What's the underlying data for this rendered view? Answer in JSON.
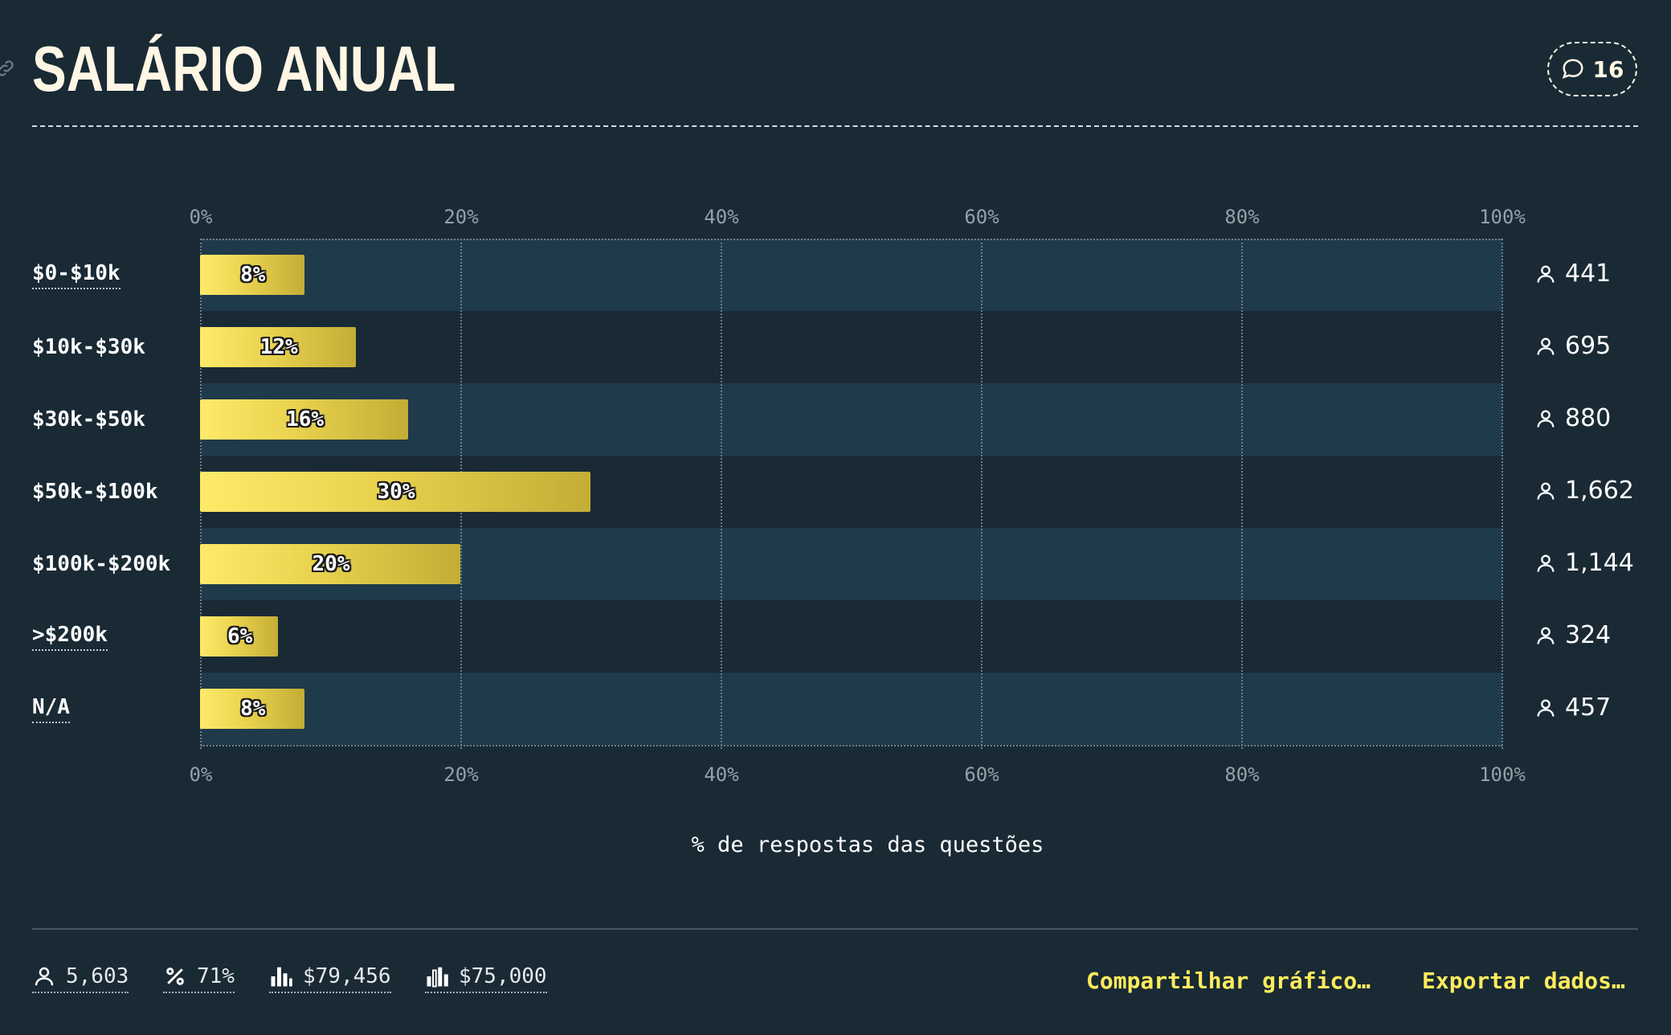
{
  "header": {
    "title": "SALÁRIO ANUAL",
    "comment_count": "16"
  },
  "colors": {
    "background": "#192a35",
    "band": "#1f3a4b",
    "bar_start": "#ffea6a",
    "bar_end": "#c4ad36",
    "accent": "#ffec5c"
  },
  "chart_data": {
    "type": "bar",
    "orientation": "horizontal",
    "categories": [
      "$0-$10k",
      "$10k-$30k",
      "$30k-$50k",
      "$50k-$100k",
      "$100k-$200k",
      ">$200k",
      "N/A"
    ],
    "values": [
      8,
      12,
      16,
      30,
      20,
      6,
      8
    ],
    "value_labels": [
      "8%",
      "12%",
      "16%",
      "30%",
      "20%",
      "6%",
      "8%"
    ],
    "counts": [
      "441",
      "695",
      "880",
      "1,662",
      "1,144",
      "324",
      "457"
    ],
    "xlim": [
      0,
      100
    ],
    "ticks": [
      "0%",
      "20%",
      "40%",
      "60%",
      "80%",
      "100%"
    ],
    "tick_values": [
      0,
      20,
      40,
      60,
      80,
      100
    ],
    "xlabel": "% de respostas das questões",
    "grid": true
  },
  "footer": {
    "stats": [
      {
        "icon": "person-icon",
        "value": "5,603"
      },
      {
        "icon": "percent-icon",
        "value": "71%"
      },
      {
        "icon": "mean-bars-icon",
        "value": "$79,456"
      },
      {
        "icon": "median-bars-icon",
        "value": "$75,000"
      }
    ],
    "share_label": "Compartilhar gráfico…",
    "export_label": "Exportar dados…"
  }
}
